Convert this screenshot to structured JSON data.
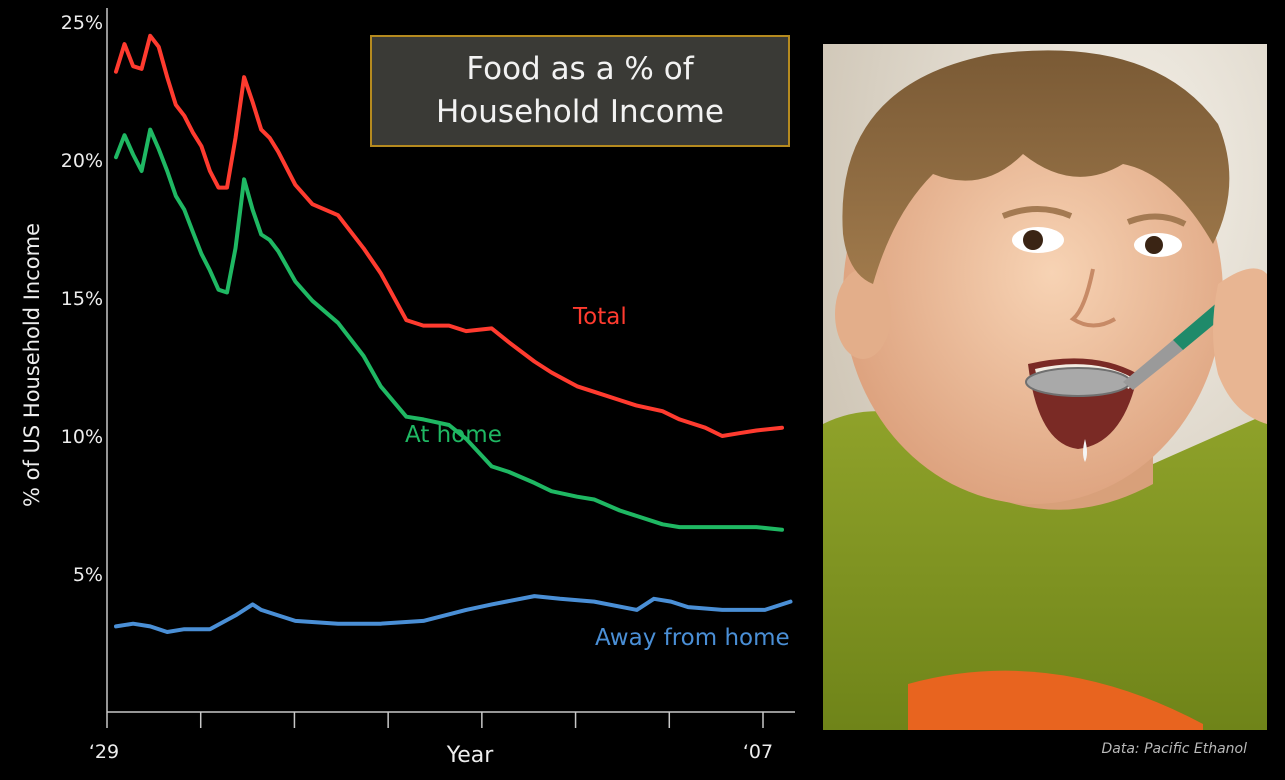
{
  "chart_data": {
    "type": "line",
    "title_lines": [
      "Food as a % of",
      "Household Income"
    ],
    "xlabel": "Year",
    "ylabel": "% of US Household Income",
    "x_tick_labels": [
      "‘29",
      "‘07"
    ],
    "x_range": [
      1929,
      2007
    ],
    "ylim": [
      0,
      25
    ],
    "y_ticks": [
      5,
      10,
      15,
      20,
      25
    ],
    "y_tick_labels": [
      "5%",
      "10%",
      "15%",
      "20%",
      "25%"
    ],
    "grid": false,
    "series": [
      {
        "name": "Total",
        "color": "#ff3b2f",
        "x": [
          1929,
          1930,
          1931,
          1932,
          1933,
          1934,
          1935,
          1936,
          1937,
          1938,
          1939,
          1940,
          1941,
          1942,
          1943,
          1944,
          1945,
          1946,
          1947,
          1948,
          1950,
          1952,
          1955,
          1958,
          1960,
          1963,
          1965,
          1968,
          1970,
          1973,
          1975,
          1978,
          1980,
          1983,
          1985,
          1988,
          1990,
          1993,
          1995,
          1998,
          2000,
          2002,
          2004,
          2007
        ],
        "values": [
          23.2,
          24.2,
          23.4,
          23.3,
          24.5,
          24.1,
          23.0,
          22.0,
          21.6,
          21.0,
          20.5,
          19.6,
          19.0,
          19.0,
          20.8,
          23.0,
          22.1,
          21.1,
          20.8,
          20.3,
          19.1,
          18.4,
          18.0,
          16.8,
          15.9,
          14.2,
          14.0,
          14.0,
          13.8,
          13.9,
          13.4,
          12.7,
          12.3,
          11.8,
          11.6,
          11.3,
          11.1,
          10.9,
          10.6,
          10.3,
          10.0,
          10.1,
          10.2,
          10.3
        ]
      },
      {
        "name": "At home",
        "color": "#1fb863",
        "x": [
          1929,
          1930,
          1931,
          1932,
          1933,
          1934,
          1935,
          1936,
          1937,
          1938,
          1939,
          1940,
          1941,
          1942,
          1943,
          1944,
          1945,
          1946,
          1947,
          1948,
          1950,
          1952,
          1955,
          1958,
          1960,
          1963,
          1965,
          1968,
          1970,
          1973,
          1975,
          1978,
          1980,
          1983,
          1985,
          1988,
          1990,
          1993,
          1995,
          1998,
          2000,
          2002,
          2004,
          2007
        ],
        "values": [
          20.1,
          20.9,
          20.2,
          19.6,
          21.1,
          20.4,
          19.6,
          18.7,
          18.2,
          17.4,
          16.6,
          16.0,
          15.3,
          15.2,
          16.8,
          19.3,
          18.2,
          17.3,
          17.1,
          16.7,
          15.6,
          14.9,
          14.1,
          12.9,
          11.8,
          10.7,
          10.6,
          10.4,
          9.9,
          8.9,
          8.7,
          8.3,
          8.0,
          7.8,
          7.7,
          7.3,
          7.1,
          6.8,
          6.7,
          6.7,
          6.7,
          6.7,
          6.7,
          6.6
        ]
      },
      {
        "name": "Away from home",
        "color": "#4a8fd6",
        "x": [
          1929,
          1931,
          1933,
          1935,
          1937,
          1940,
          1943,
          1945,
          1946,
          1948,
          1950,
          1955,
          1960,
          1965,
          1970,
          1973,
          1978,
          1981,
          1985,
          1990,
          1992,
          1994,
          1996,
          2000,
          2005,
          2008
        ],
        "values": [
          3.1,
          3.2,
          3.1,
          2.9,
          3.0,
          3.0,
          3.5,
          3.9,
          3.7,
          3.5,
          3.3,
          3.2,
          3.2,
          3.3,
          3.7,
          3.9,
          4.2,
          4.1,
          4.0,
          3.7,
          4.1,
          4.0,
          3.8,
          3.7,
          3.7,
          4.0
        ]
      }
    ],
    "annotations": [
      {
        "text": "Total",
        "series": "Total",
        "color": "#ff3b2f"
      },
      {
        "text": "At home",
        "series": "At home",
        "color": "#1fb863"
      },
      {
        "text": "Away from home",
        "series": "Away from home",
        "color": "#4a8fd6"
      }
    ]
  },
  "source_note": "Data: Pacific Ethanol",
  "photo": {
    "description_icon": "child-eating-photo"
  }
}
